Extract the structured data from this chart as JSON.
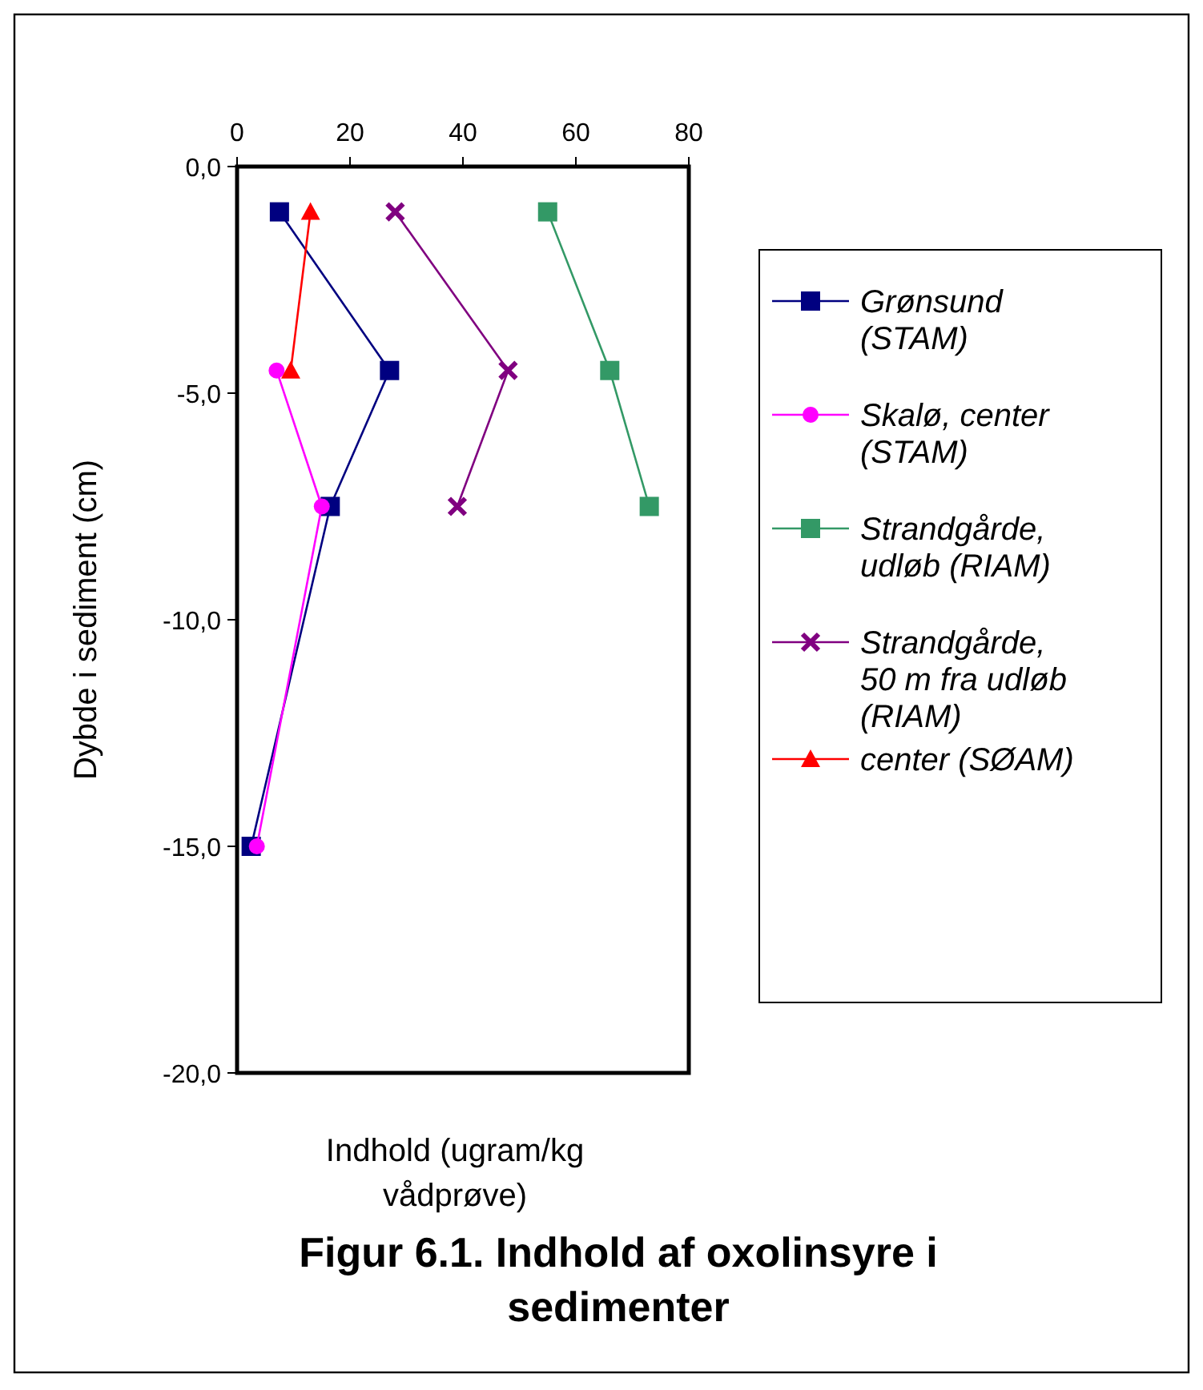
{
  "chart_data": {
    "type": "line",
    "title": "Figur 6.1. Indhold af oxolinsyre i sedimenter",
    "xlabel": "Indhold (ugram/kg vådprøve)",
    "ylabel": "Dybde i sediment (cm)",
    "xlim": [
      0,
      80
    ],
    "xticks": [
      0,
      20,
      40,
      60,
      80
    ],
    "ylim": [
      -20,
      0
    ],
    "yticks": [
      {
        "value": 0,
        "label": "0,0"
      },
      {
        "value": -5,
        "label": "-5,0"
      },
      {
        "value": -10,
        "label": "-10,0"
      },
      {
        "value": -15,
        "label": "-15,0"
      },
      {
        "value": -20,
        "label": "-20,0"
      }
    ],
    "grid": false,
    "legend": "right",
    "series": [
      {
        "name": "Grønsund (STAM)",
        "color": "#000080",
        "marker": "square",
        "x": [
          7.5,
          27,
          16.5,
          2.5
        ],
        "values": [
          -1,
          -4.5,
          -7.5,
          -15
        ]
      },
      {
        "name": "Skalø, center (STAM)",
        "color": "#ff00ff",
        "marker": "circle",
        "x": [
          7,
          15,
          3.5
        ],
        "values": [
          -4.5,
          -7.5,
          -15
        ]
      },
      {
        "name": "Strandgårde, udløb (RIAM)",
        "color": "#339966",
        "marker": "square",
        "x": [
          55,
          66,
          73
        ],
        "values": [
          -1,
          -4.5,
          -7.5
        ]
      },
      {
        "name": "Strandgårde, 50 m fra udløb (RIAM)",
        "color": "#800080",
        "marker": "cross",
        "x": [
          28,
          48,
          39
        ],
        "values": [
          -1,
          -4.5,
          -7.5
        ]
      },
      {
        "name": "center (SØAM)",
        "color": "#ff0000",
        "marker": "triangle",
        "x": [
          13,
          9.5
        ],
        "values": [
          -1,
          -4.5
        ]
      }
    ]
  }
}
